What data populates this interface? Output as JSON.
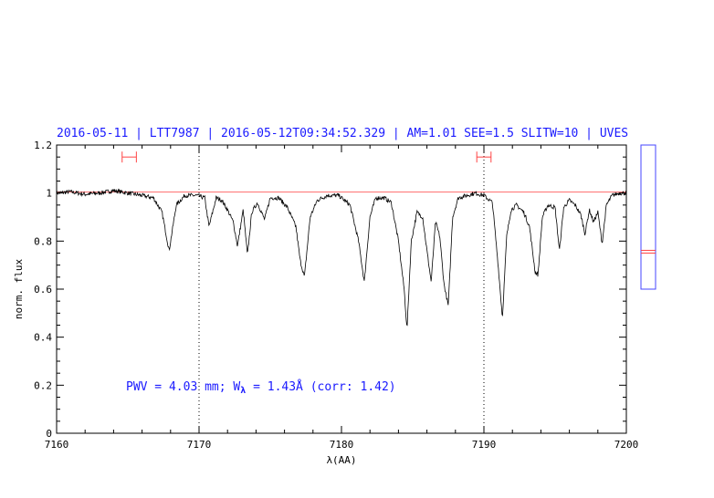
{
  "chart_data": {
    "type": "line",
    "title": "2016-05-11 | LTT7987 | 2016-05-12T09:34:52.329 | AM=1.01 SEE=1.5 SLITW=10 | UVES",
    "xlabel": "λ(AA)",
    "ylabel": "norm. flux",
    "xlim": [
      7160,
      7200
    ],
    "ylim": [
      0,
      1.2
    ],
    "x_ticks": [
      "7160",
      "7170",
      "7180",
      "7190",
      "7200"
    ],
    "y_ticks": [
      "0",
      "0.2",
      "0.4",
      "0.6",
      "0.8",
      "1",
      "1.2"
    ],
    "grid": false,
    "vertical_markers": [
      7170,
      7190
    ],
    "annotation": {
      "prefix": "PWV = 4.03 mm; W",
      "subscript": "λ",
      "suffix": " = 1.43Å (corr: 1.42)"
    },
    "series": [
      {
        "values_desc": "normalized flux spectrum",
        "color": "#000000",
        "x": [
          7160.0,
          7161.0,
          7162.0,
          7163.0,
          7164.0,
          7165.0,
          7166.0,
          7166.8,
          7167.4,
          7167.9,
          7168.4,
          7169.0,
          7169.8,
          7170.4,
          7170.7,
          7171.2,
          7171.6,
          7172.0,
          7172.4,
          7172.7,
          7173.1,
          7173.4,
          7173.7,
          7174.1,
          7174.6,
          7175.0,
          7175.6,
          7176.2,
          7176.8,
          7177.1,
          7177.4,
          7177.8,
          7178.3,
          7179.0,
          7179.8,
          7180.6,
          7181.2,
          7181.6,
          7182.0,
          7182.4,
          7183.0,
          7183.5,
          7184.0,
          7184.4,
          7184.6,
          7184.9,
          7185.3,
          7185.7,
          7186.0,
          7186.3,
          7186.6,
          7186.9,
          7187.2,
          7187.5,
          7187.8,
          7188.2,
          7188.8,
          7189.4,
          7190.0,
          7190.6,
          7191.0,
          7191.3,
          7191.6,
          7191.9,
          7192.3,
          7192.8,
          7193.2,
          7193.6,
          7193.8,
          7194.1,
          7194.5,
          7195.0,
          7195.3,
          7195.6,
          7196.0,
          7196.4,
          7196.8,
          7197.1,
          7197.4,
          7197.7,
          7198.0,
          7198.3,
          7198.6,
          7199.0,
          7199.5,
          7200.0
        ],
        "y": [
          1.0,
          1.005,
          0.995,
          1.0,
          1.01,
          1.0,
          0.99,
          0.98,
          0.92,
          0.76,
          0.95,
          0.99,
          0.99,
          0.98,
          0.86,
          0.98,
          0.97,
          0.93,
          0.88,
          0.78,
          0.93,
          0.74,
          0.92,
          0.96,
          0.89,
          0.98,
          0.98,
          0.94,
          0.86,
          0.72,
          0.65,
          0.9,
          0.97,
          0.99,
          0.99,
          0.95,
          0.8,
          0.63,
          0.9,
          0.98,
          0.98,
          0.96,
          0.8,
          0.6,
          0.43,
          0.8,
          0.92,
          0.9,
          0.76,
          0.63,
          0.88,
          0.82,
          0.62,
          0.53,
          0.9,
          0.98,
          0.99,
          1.0,
          0.99,
          0.96,
          0.7,
          0.48,
          0.82,
          0.93,
          0.95,
          0.92,
          0.86,
          0.67,
          0.66,
          0.9,
          0.95,
          0.94,
          0.76,
          0.94,
          0.97,
          0.95,
          0.91,
          0.83,
          0.93,
          0.88,
          0.92,
          0.79,
          0.95,
          0.99,
          1.0,
          1.0
        ]
      },
      {
        "values_desc": "continuum",
        "color": "#ff4444",
        "x": [
          7160,
          7200
        ],
        "y": [
          1.005,
          1.005
        ]
      }
    ],
    "error_bars": [
      {
        "x_from": 7164.6,
        "x_to": 7165.6,
        "y": 1.15
      },
      {
        "x_from": 7189.5,
        "x_to": 7190.5,
        "y": 1.15
      }
    ],
    "side_panel_level": 0.7
  }
}
